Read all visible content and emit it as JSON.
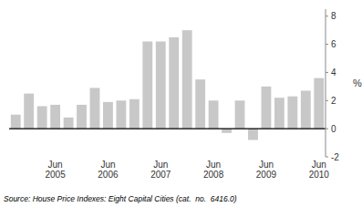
{
  "chart_data": {
    "type": "bar",
    "y_label": "%",
    "source": "Source: House Price Indexes: Eight Capital Cities (cat.  no.  6416.0)",
    "categories": [
      null,
      null,
      null,
      "Jun\n2005",
      null,
      null,
      null,
      "Jun\n2006",
      null,
      null,
      null,
      "Jun\n2007",
      null,
      null,
      null,
      "Jun\n2008",
      null,
      null,
      null,
      "Jun\n2009",
      null,
      null,
      null,
      "Jun\n2010"
    ],
    "values": [
      1.0,
      2.5,
      1.6,
      1.7,
      0.8,
      1.7,
      2.9,
      1.9,
      2.0,
      2.1,
      6.2,
      6.2,
      6.5,
      7.0,
      3.5,
      2.0,
      -0.3,
      2.0,
      -0.8,
      3.0,
      2.2,
      2.3,
      2.7,
      3.6
    ],
    "color": "#c8c8c8",
    "ylim": [
      -2,
      8.5
    ],
    "yticks": [
      -2,
      0,
      2,
      4,
      6,
      8
    ],
    "grid": false
  }
}
